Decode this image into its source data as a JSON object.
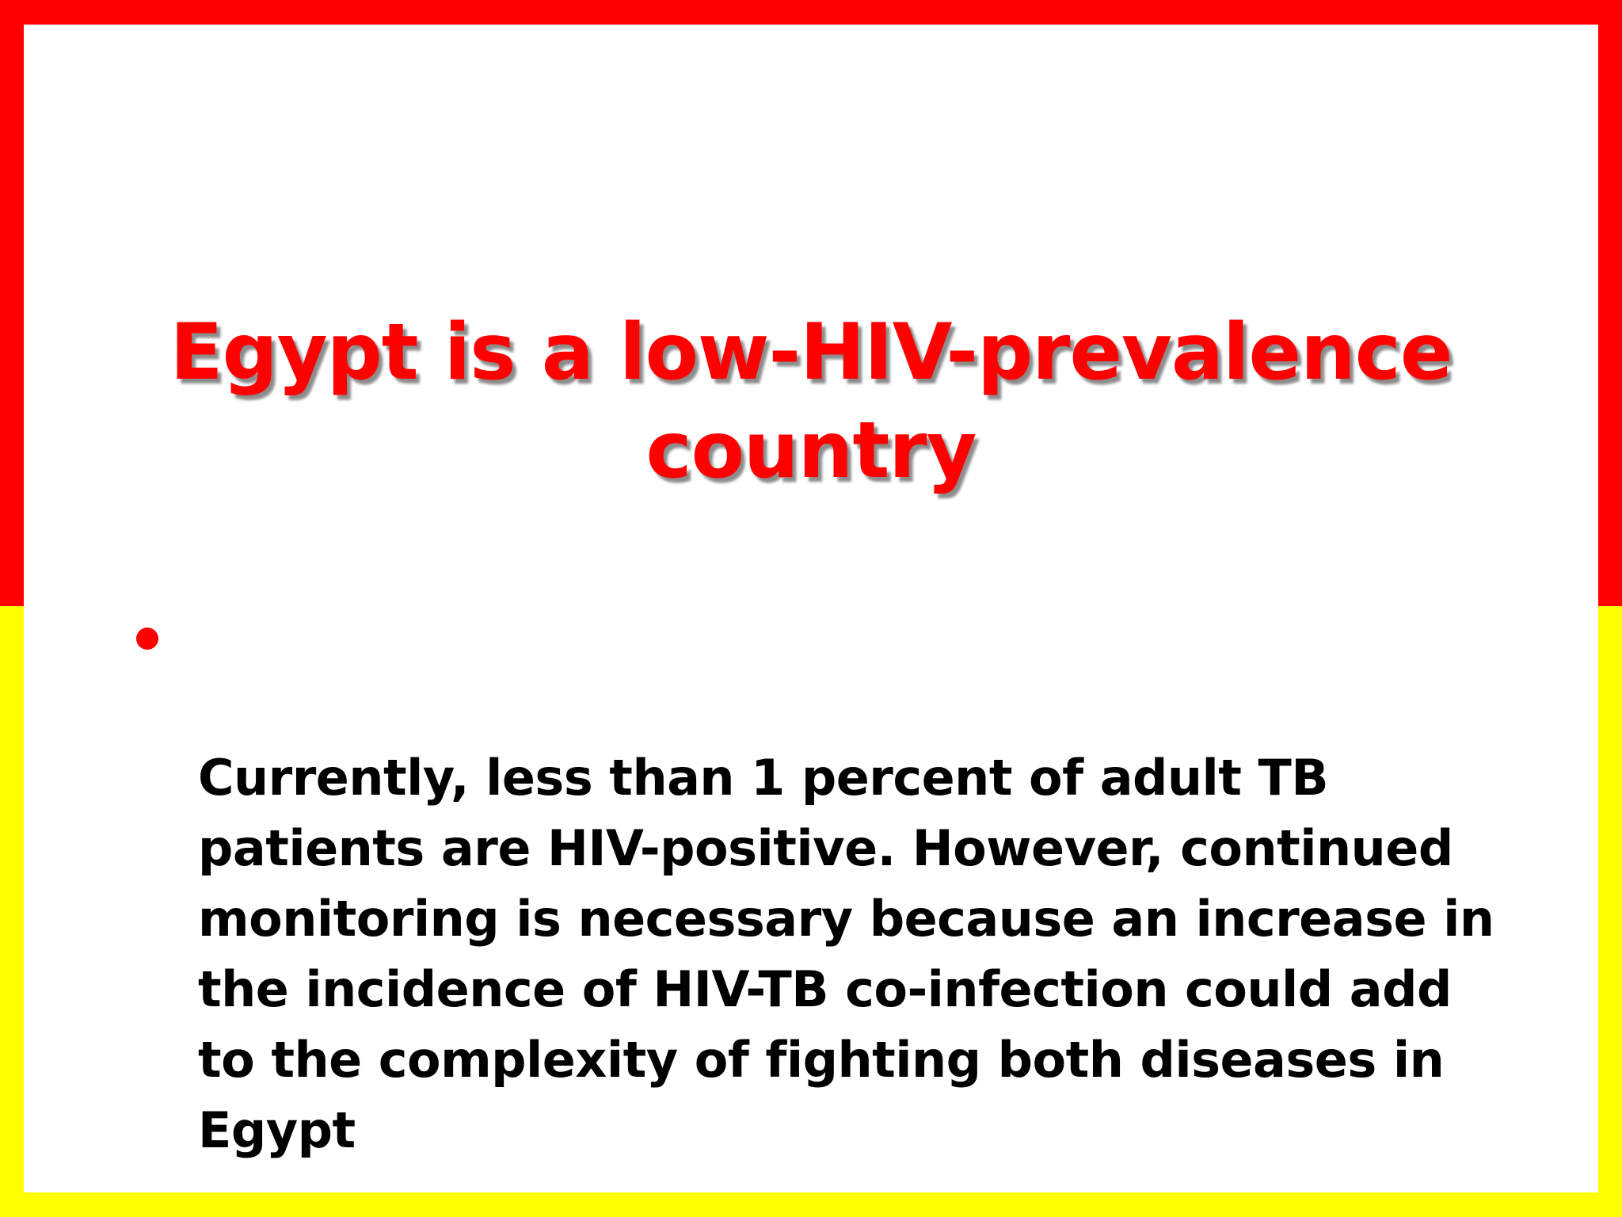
{
  "slide": {
    "title_lines": [
      "Egypt is a low-HIV-prevalence",
      "country"
    ],
    "bullets": [
      {
        "lines": "Currently, less than 1 percent of adult TB\npatients are HIV-positive. However, continued\nmonitoring is necessary because an increase in\nthe incidence of HIV-TB co-infection could add\nto the complexity of fighting both diseases in\nEgypt"
      }
    ]
  },
  "colors": {
    "frame_top": "#ff0000",
    "frame_bottom": "#ffff00",
    "title": "#ff0000",
    "bullet_marker": "#ff0000",
    "body_text": "#000000",
    "slide_background": "#ffffff"
  }
}
